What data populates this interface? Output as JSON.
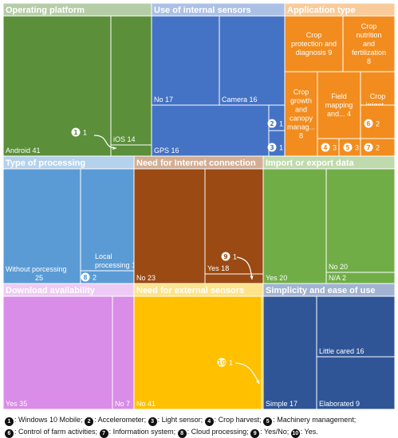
{
  "chart_data": {
    "type": "treemap",
    "groups": [
      {
        "title": "Operating platform",
        "color": "#5b8f3a",
        "items": [
          {
            "label": "Android",
            "value": 41
          },
          {
            "label": "iOS",
            "value": 14
          },
          {
            "label": "",
            "value": 1,
            "badge": "❶"
          }
        ]
      },
      {
        "title": "Use of internal sensors",
        "color": "#4472c4",
        "items": [
          {
            "label": "No",
            "value": 17
          },
          {
            "label": "Camera",
            "value": 16
          },
          {
            "label": "GPS",
            "value": 16
          },
          {
            "label": "",
            "value": 1,
            "badge": "❷"
          },
          {
            "label": "",
            "value": 1,
            "badge": "❸"
          }
        ]
      },
      {
        "title": "Application type",
        "color": "#f28c1e",
        "items": [
          {
            "label": "Crop protection and diagnosis",
            "value": 9
          },
          {
            "label": "Crop nutrition and fertilization",
            "value": 8
          },
          {
            "label": "Crop growth and canopy manag...",
            "value": 8
          },
          {
            "label": "Field mapping and...",
            "value": 4
          },
          {
            "label": "Crop irrigat...",
            "value": 3
          },
          {
            "label": "",
            "value": 3,
            "badge": "❹"
          },
          {
            "label": "",
            "value": 3,
            "badge": "❺"
          },
          {
            "label": "",
            "value": 2,
            "badge": "❻"
          },
          {
            "label": "",
            "value": 2,
            "badge": "❼"
          }
        ]
      },
      {
        "title": "Type of processing",
        "color": "#5b9bd5",
        "items": [
          {
            "label": "Without porcessing",
            "value": 25
          },
          {
            "label": "Local processing",
            "value": 15
          },
          {
            "label": "",
            "value": 2,
            "badge": "❽"
          }
        ]
      },
      {
        "title": "Need for Internet connection",
        "color": "#9a4a12",
        "items": [
          {
            "label": "No",
            "value": 23
          },
          {
            "label": "Yes",
            "value": 18
          },
          {
            "label": "",
            "value": 1,
            "badge": "❾"
          }
        ]
      },
      {
        "title": "Import or export data",
        "color": "#70ad47",
        "items": [
          {
            "label": "Yes",
            "value": 20
          },
          {
            "label": "No",
            "value": 20
          },
          {
            "label": "N/A",
            "value": 2
          }
        ]
      },
      {
        "title": "Download availability",
        "color": "#d98ce8",
        "items": [
          {
            "label": "Yes",
            "value": 35
          },
          {
            "label": "No",
            "value": 7
          }
        ]
      },
      {
        "title": "Need for external sensors",
        "color": "#ffc000",
        "items": [
          {
            "label": "No",
            "value": 41
          },
          {
            "label": "",
            "value": 1,
            "badge": "❿"
          }
        ]
      },
      {
        "title": "Simplicity and ease of use",
        "color": "#2f5597",
        "items": [
          {
            "label": "Simple",
            "value": 17
          },
          {
            "label": "Little cared",
            "value": 16
          },
          {
            "label": "Elaborated",
            "value": 9
          }
        ]
      }
    ]
  },
  "legend": [
    {
      "badge": "❶",
      "text": ": Windows 10 Mobile;"
    },
    {
      "badge": "❷",
      "text": ": Accelerometer;"
    },
    {
      "badge": "❸",
      "text": ": Light sensor;"
    },
    {
      "badge": "❹",
      "text": ": Crop harvest;"
    },
    {
      "badge": "❺",
      "text": ": Machinery management;"
    },
    {
      "badge": "❻",
      "text": ": Control of farm activities;"
    },
    {
      "badge": "❼",
      "text": ": Information system;"
    },
    {
      "badge": "❽",
      "text": ": Cloud processing;"
    },
    {
      "badge": "❾",
      "text": ": Yes/No;"
    },
    {
      "badge": "❿",
      "text": ": Yes."
    }
  ]
}
